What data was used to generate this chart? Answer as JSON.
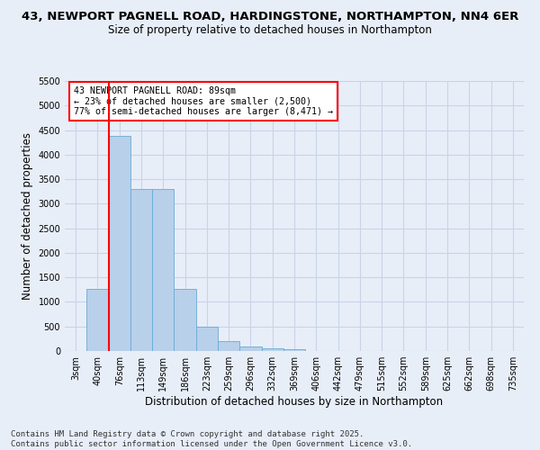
{
  "title_line1": "43, NEWPORT PAGNELL ROAD, HARDINGSTONE, NORTHAMPTON, NN4 6ER",
  "title_line2": "Size of property relative to detached houses in Northampton",
  "xlabel": "Distribution of detached houses by size in Northampton",
  "ylabel": "Number of detached properties",
  "categories": [
    "3sqm",
    "40sqm",
    "76sqm",
    "113sqm",
    "149sqm",
    "186sqm",
    "223sqm",
    "259sqm",
    "296sqm",
    "332sqm",
    "369sqm",
    "406sqm",
    "442sqm",
    "479sqm",
    "515sqm",
    "552sqm",
    "589sqm",
    "625sqm",
    "662sqm",
    "698sqm",
    "735sqm"
  ],
  "bar_values": [
    0,
    1270,
    4380,
    3300,
    3300,
    1270,
    500,
    210,
    85,
    50,
    30,
    0,
    0,
    0,
    0,
    0,
    0,
    0,
    0,
    0,
    0
  ],
  "bar_color": "#b8d0ea",
  "bar_edge_color": "#6aaad4",
  "grid_color": "#c8d4e8",
  "background_color": "#e8eef8",
  "vline_color": "red",
  "vline_x_index": 2,
  "annotation_text": "43 NEWPORT PAGNELL ROAD: 89sqm\n← 23% of detached houses are smaller (2,500)\n77% of semi-detached houses are larger (8,471) →",
  "annotation_box_color": "white",
  "annotation_box_edge": "red",
  "ylim": [
    0,
    5500
  ],
  "yticks": [
    0,
    500,
    1000,
    1500,
    2000,
    2500,
    3000,
    3500,
    4000,
    4500,
    5000,
    5500
  ],
  "footer_line1": "Contains HM Land Registry data © Crown copyright and database right 2025.",
  "footer_line2": "Contains public sector information licensed under the Open Government Licence v3.0.",
  "title_fontsize": 9.5,
  "subtitle_fontsize": 8.5,
  "annot_fontsize": 7.2,
  "xlabel_fontsize": 8.5,
  "ylabel_fontsize": 8.5,
  "tick_fontsize": 7,
  "footer_fontsize": 6.5
}
